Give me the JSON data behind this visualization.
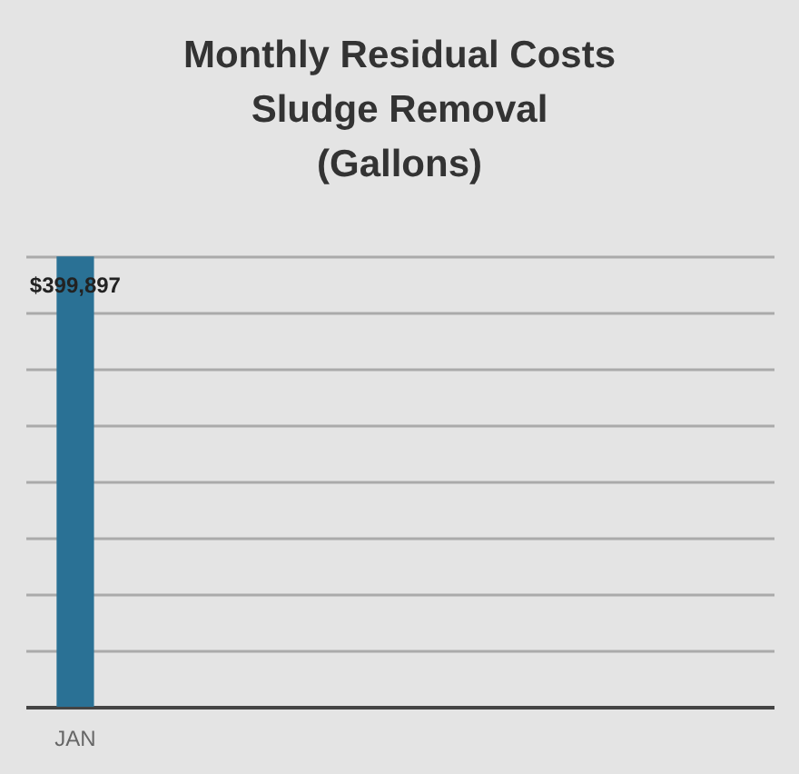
{
  "chart_data": {
    "type": "bar",
    "title": "Monthly Residual Costs\nSludge Removal\n(Gallons)",
    "categories": [
      "JAN"
    ],
    "values": [
      399897
    ],
    "value_labels": [
      "$399,897"
    ],
    "color": "#2a7195",
    "ylim": [
      0,
      400000
    ],
    "yticks": [
      {
        "value": 0,
        "label": null
      },
      {
        "value": 50000,
        "label": null
      },
      {
        "value": 100000,
        "label": null
      },
      {
        "value": 150000,
        "label": null
      },
      {
        "value": 200000,
        "label": null
      },
      {
        "value": 250000,
        "label": null
      },
      {
        "value": 300000,
        "label": null
      },
      {
        "value": 350000,
        "label": null
      },
      {
        "value": 400000,
        "label": null
      }
    ],
    "grid": "y",
    "tick_labels": "x"
  }
}
